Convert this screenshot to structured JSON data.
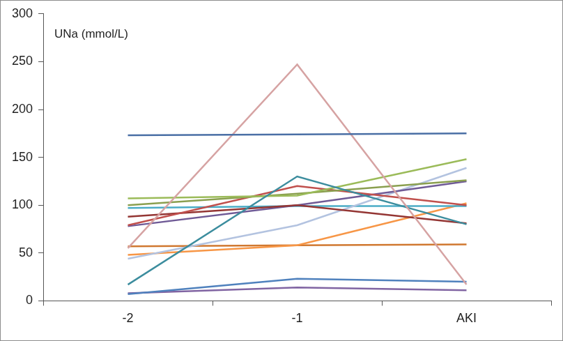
{
  "chart_data": {
    "type": "line",
    "y_label": "UNa (mmol/L)",
    "categories": [
      "-2",
      "-1",
      "AKI"
    ],
    "ylim": [
      0,
      300
    ],
    "yticks": [
      0,
      50,
      100,
      150,
      200,
      250,
      300
    ],
    "grid": false,
    "series": [
      {
        "color": "#4a6fa5",
        "values": [
          173,
          174,
          175
        ]
      },
      {
        "color": "#d6a3a3",
        "values": [
          55,
          247,
          17
        ]
      },
      {
        "color": "#3c8d9e",
        "values": [
          17,
          130,
          80
        ]
      },
      {
        "color": "#9bbb59",
        "values": [
          107,
          110,
          148
        ]
      },
      {
        "color": "#8a9f4f",
        "values": [
          100,
          112,
          126
        ]
      },
      {
        "color": "#c0504d",
        "values": [
          79,
          120,
          100
        ]
      },
      {
        "color": "#943634",
        "values": [
          88,
          100,
          81
        ]
      },
      {
        "color": "#6f5a96",
        "values": [
          78,
          100,
          125
        ]
      },
      {
        "color": "#b3c3e0",
        "values": [
          44,
          79,
          139
        ]
      },
      {
        "color": "#4bacc6",
        "values": [
          97,
          99,
          99
        ]
      },
      {
        "color": "#f79646",
        "values": [
          48,
          58,
          102
        ]
      },
      {
        "color": "#d07830",
        "values": [
          57,
          58,
          59
        ]
      },
      {
        "color": "#4f81bd",
        "values": [
          7,
          23,
          20
        ]
      },
      {
        "color": "#8064a2",
        "values": [
          8,
          14,
          11
        ]
      }
    ]
  }
}
